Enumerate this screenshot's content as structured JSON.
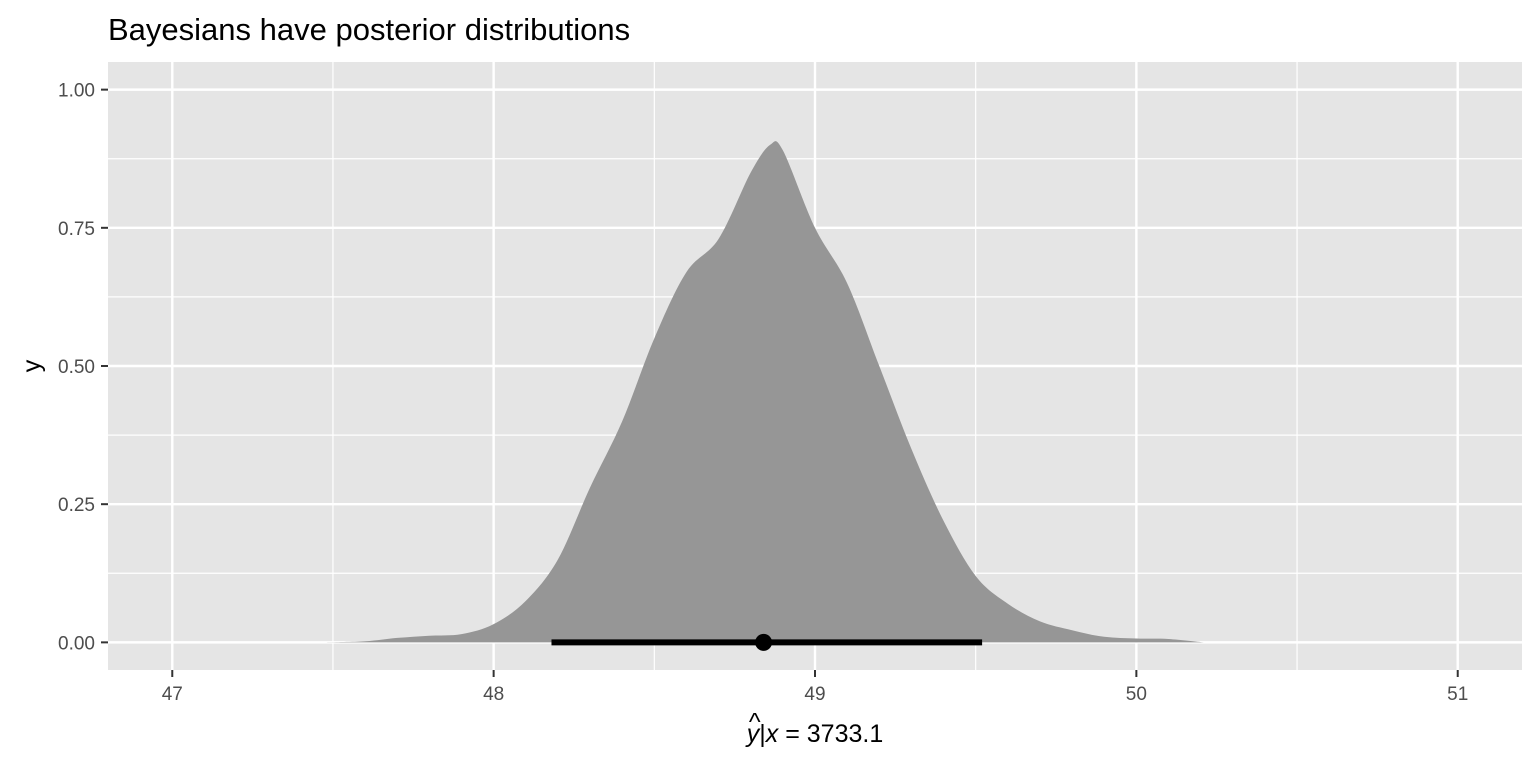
{
  "chart_data": {
    "type": "area",
    "title": "Bayesians have posterior distributions",
    "xlabel": "ŷ|x = 3733.1",
    "xlabel_parts": {
      "hat_var": "y",
      "bar": "|",
      "cond_var": "x",
      "rest": " = 3733.1"
    },
    "ylabel": "y",
    "xlim": [
      46.8,
      51.2
    ],
    "ylim": [
      -0.05,
      1.05
    ],
    "x_ticks": [
      47,
      48,
      49,
      50,
      51
    ],
    "x_tick_labels": [
      "47",
      "48",
      "49",
      "50",
      "51"
    ],
    "y_ticks": [
      0,
      0.25,
      0.5,
      0.75,
      1.0
    ],
    "y_tick_labels": [
      "0.00",
      "0.25",
      "0.50",
      "0.75",
      "1.00"
    ],
    "grid": true,
    "legend": "none",
    "colors": {
      "panel": "#e5e5e5",
      "grid": "#ffffff",
      "density_fill": "#969696",
      "interval": "#000000",
      "text": "#4d4d4d"
    },
    "density": {
      "x": [
        47.48,
        47.6,
        47.7,
        47.8,
        47.9,
        48.0,
        48.1,
        48.2,
        48.3,
        48.4,
        48.5,
        48.6,
        48.7,
        48.8,
        48.86,
        48.9,
        49.0,
        49.1,
        49.2,
        49.3,
        49.4,
        49.5,
        49.6,
        49.7,
        49.8,
        49.9,
        50.0,
        50.1,
        50.21
      ],
      "y": [
        0.0,
        0.002,
        0.008,
        0.012,
        0.015,
        0.033,
        0.075,
        0.15,
        0.28,
        0.4,
        0.55,
        0.67,
        0.73,
        0.85,
        0.9,
        0.89,
        0.75,
        0.65,
        0.5,
        0.35,
        0.22,
        0.12,
        0.07,
        0.038,
        0.022,
        0.01,
        0.007,
        0.006,
        0.0
      ]
    },
    "point_estimate": 48.84,
    "interval": [
      48.18,
      49.52
    ]
  }
}
